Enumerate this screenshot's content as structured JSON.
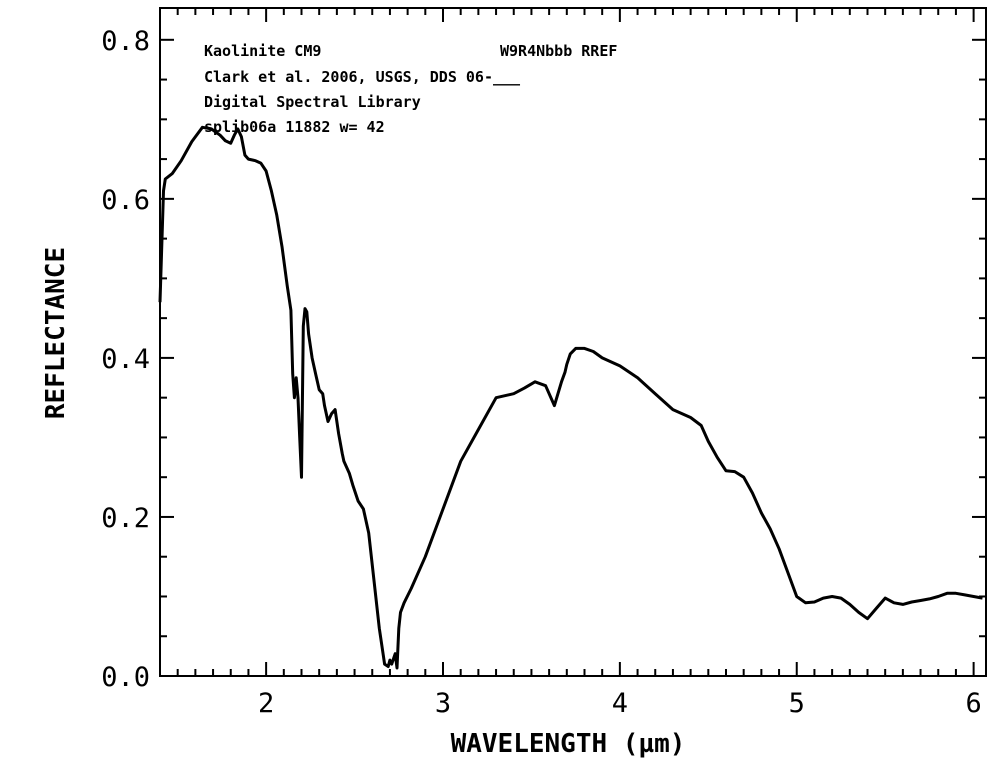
{
  "chart_data": {
    "type": "line",
    "xlabel": "WAVELENGTH (µm)",
    "ylabel": "REFLECTANCE",
    "xlim": [
      1.4,
      6.07
    ],
    "ylim": [
      0.0,
      0.84
    ],
    "x_ticks": [
      2,
      3,
      4,
      5,
      6
    ],
    "y_ticks": [
      "0.0",
      "0.2",
      "0.4",
      "0.6",
      "0.8"
    ],
    "grid": false,
    "annotations": [
      "Kaolinite CM9",
      "W9R4Nbbb RREF",
      "Clark et al. 2006, USGS, DDS 06-___",
      "Digital Spectral Library",
      "splib06a 11882 w= 42"
    ],
    "series": [
      {
        "color": "#000000",
        "x": [
          1.4,
          1.42,
          1.43,
          1.47,
          1.52,
          1.58,
          1.64,
          1.69,
          1.74,
          1.77,
          1.8,
          1.82,
          1.84,
          1.86,
          1.88,
          1.9,
          1.94,
          1.97,
          2.0,
          2.03,
          2.06,
          2.09,
          2.12,
          2.14,
          2.15,
          2.16,
          2.17,
          2.18,
          2.19,
          2.2,
          2.21,
          2.22,
          2.23,
          2.24,
          2.26,
          2.28,
          2.3,
          2.32,
          2.33,
          2.35,
          2.37,
          2.39,
          2.41,
          2.43,
          2.44,
          2.47,
          2.49,
          2.52,
          2.55,
          2.58,
          2.61,
          2.64,
          2.67,
          2.69,
          2.7,
          2.71,
          2.73,
          2.74,
          2.75,
          2.76,
          2.78,
          2.82,
          2.9,
          3.0,
          3.1,
          3.2,
          3.3,
          3.4,
          3.46,
          3.52,
          3.58,
          3.63,
          3.67,
          3.69,
          3.7,
          3.72,
          3.75,
          3.8,
          3.85,
          3.9,
          4.0,
          4.1,
          4.2,
          4.3,
          4.4,
          4.46,
          4.5,
          4.55,
          4.6,
          4.65,
          4.7,
          4.75,
          4.8,
          4.85,
          4.9,
          4.95,
          5.0,
          5.05,
          5.1,
          5.15,
          5.2,
          5.25,
          5.3,
          5.35,
          5.4,
          5.45,
          5.5,
          5.55,
          5.6,
          5.65,
          5.7,
          5.75,
          5.8,
          5.85,
          5.9,
          5.95,
          6.0,
          6.05
        ],
        "y": [
          0.47,
          0.61,
          0.625,
          0.632,
          0.648,
          0.672,
          0.69,
          0.688,
          0.68,
          0.673,
          0.67,
          0.68,
          0.688,
          0.678,
          0.655,
          0.65,
          0.648,
          0.645,
          0.635,
          0.61,
          0.58,
          0.54,
          0.49,
          0.46,
          0.38,
          0.35,
          0.375,
          0.35,
          0.3,
          0.25,
          0.44,
          0.462,
          0.458,
          0.43,
          0.4,
          0.38,
          0.36,
          0.355,
          0.34,
          0.32,
          0.33,
          0.335,
          0.305,
          0.28,
          0.27,
          0.255,
          0.24,
          0.22,
          0.21,
          0.18,
          0.12,
          0.06,
          0.015,
          0.012,
          0.02,
          0.015,
          0.028,
          0.01,
          0.06,
          0.08,
          0.092,
          0.11,
          0.15,
          0.21,
          0.27,
          0.31,
          0.35,
          0.355,
          0.362,
          0.37,
          0.365,
          0.34,
          0.37,
          0.382,
          0.392,
          0.405,
          0.412,
          0.412,
          0.408,
          0.4,
          0.39,
          0.375,
          0.355,
          0.335,
          0.325,
          0.315,
          0.295,
          0.275,
          0.258,
          0.257,
          0.25,
          0.23,
          0.205,
          0.185,
          0.16,
          0.13,
          0.1,
          0.092,
          0.093,
          0.098,
          0.1,
          0.098,
          0.09,
          0.08,
          0.072,
          0.085,
          0.098,
          0.092,
          0.09,
          0.093,
          0.095,
          0.097,
          0.1,
          0.104,
          0.104,
          0.102,
          0.1,
          0.098
        ]
      }
    ]
  }
}
